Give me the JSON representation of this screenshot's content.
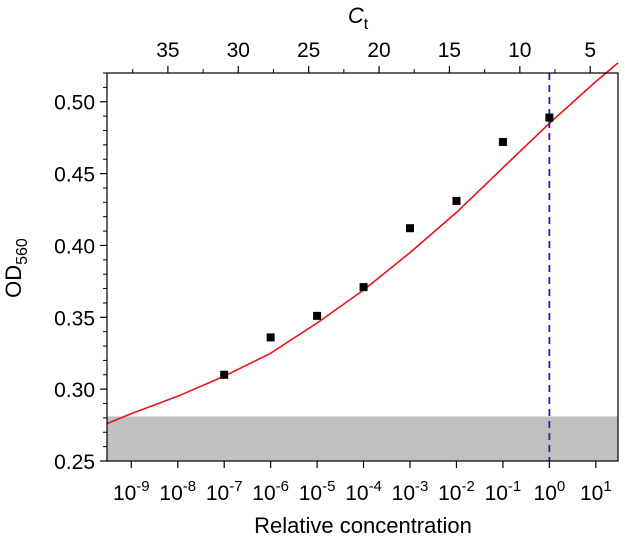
{
  "chart_data": {
    "type": "scatter",
    "xlabel": "Relative concentration",
    "ylabel": {
      "main": "OD",
      "sub": "560"
    },
    "top_xlabel": {
      "main": "C",
      "sub": "t"
    },
    "x_scale": "log10",
    "xlim": [
      3e-10,
      30.0
    ],
    "ylim": [
      0.25,
      0.52
    ],
    "x_ticks": [
      {
        "exp": -9,
        "base": "10",
        "sup": "-9"
      },
      {
        "exp": -8,
        "base": "10",
        "sup": "-8"
      },
      {
        "exp": -7,
        "base": "10",
        "sup": "-7"
      },
      {
        "exp": -6,
        "base": "10",
        "sup": "-6"
      },
      {
        "exp": -5,
        "base": "10",
        "sup": "-5"
      },
      {
        "exp": -4,
        "base": "10",
        "sup": "-4"
      },
      {
        "exp": -3,
        "base": "10",
        "sup": "-3"
      },
      {
        "exp": -2,
        "base": "10",
        "sup": "-2"
      },
      {
        "exp": -1,
        "base": "10",
        "sup": "-1"
      },
      {
        "exp": 0,
        "base": "10",
        "sup": "0"
      },
      {
        "exp": 1,
        "base": "10",
        "sup": "1"
      }
    ],
    "y_ticks": [
      {
        "value": 0.25,
        "label": "0.25"
      },
      {
        "value": 0.3,
        "label": "0.30"
      },
      {
        "value": 0.35,
        "label": "0.35"
      },
      {
        "value": 0.4,
        "label": "0.40"
      },
      {
        "value": 0.45,
        "label": "0.45"
      },
      {
        "value": 0.5,
        "label": "0.50"
      }
    ],
    "top_ticks": [
      {
        "value": 35,
        "label": "35"
      },
      {
        "value": 30,
        "label": "30"
      },
      {
        "value": 25,
        "label": "25"
      },
      {
        "value": 20,
        "label": "20"
      },
      {
        "value": 15,
        "label": "15"
      },
      {
        "value": 10,
        "label": "10"
      },
      {
        "value": 5,
        "label": "5"
      }
    ],
    "ct_axis_mapping": {
      "ct_at_x_1": 7.9,
      "ct_per_decade": 3.3
    },
    "points": [
      {
        "x": 1e-07,
        "y": 0.31
      },
      {
        "x": 1e-06,
        "y": 0.336
      },
      {
        "x": 1e-05,
        "y": 0.351
      },
      {
        "x": 0.0001,
        "y": 0.371
      },
      {
        "x": 0.001,
        "y": 0.412
      },
      {
        "x": 0.01,
        "y": 0.431
      },
      {
        "x": 0.1,
        "y": 0.472
      },
      {
        "x": 1,
        "y": 0.489
      }
    ],
    "fit_curve": [
      {
        "x": 3e-10,
        "y": 0.276
      },
      {
        "x": 1e-09,
        "y": 0.283
      },
      {
        "x": 1e-08,
        "y": 0.295
      },
      {
        "x": 1e-07,
        "y": 0.309
      },
      {
        "x": 1e-06,
        "y": 0.325
      },
      {
        "x": 1e-05,
        "y": 0.346
      },
      {
        "x": 0.0001,
        "y": 0.369
      },
      {
        "x": 0.001,
        "y": 0.395
      },
      {
        "x": 0.01,
        "y": 0.423
      },
      {
        "x": 0.1,
        "y": 0.454
      },
      {
        "x": 1,
        "y": 0.485
      },
      {
        "x": 10,
        "y": 0.514
      },
      {
        "x": 30,
        "y": 0.527
      }
    ],
    "shaded_band": {
      "y_min": 0.25,
      "y_max": 0.281,
      "color": "#c0c0c0"
    },
    "vline": {
      "x": 1,
      "color": "#1f24a8",
      "style": "dashed"
    },
    "marker_color": "#000000",
    "fit_color": "#e8121b",
    "grid": false,
    "legend": "none"
  }
}
